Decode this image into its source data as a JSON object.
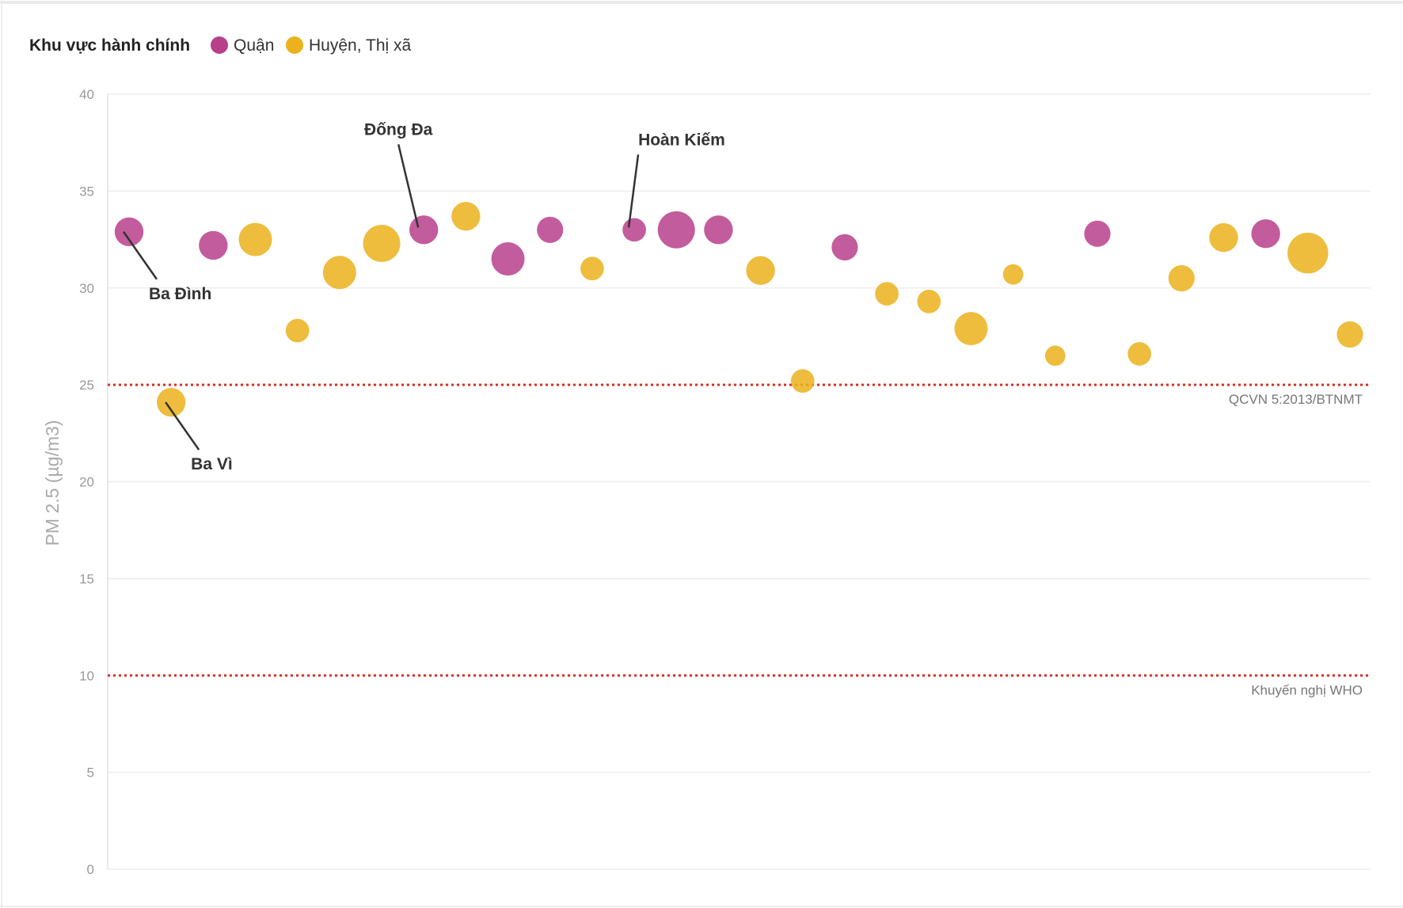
{
  "chart_data": {
    "type": "scatter",
    "legend": {
      "title": "Khu vực hành chính",
      "placement": "top-left",
      "items": [
        {
          "label": "Quận",
          "color": "#b8408b"
        },
        {
          "label": "Huyện, Thị xã",
          "color": "#ebb21c"
        }
      ]
    },
    "ylabel": "PM 2.5 (µg/m3)",
    "xlabel": "",
    "ylim": [
      0,
      40
    ],
    "yticks": [
      {
        "value": 0,
        "label": "0"
      },
      {
        "value": 5,
        "label": "5"
      },
      {
        "value": 10,
        "label": "10"
      },
      {
        "value": 15,
        "label": "15"
      },
      {
        "value": 20,
        "label": "20"
      },
      {
        "value": 25,
        "label": "25"
      },
      {
        "value": 30,
        "label": "30"
      },
      {
        "value": 35,
        "label": "35"
      },
      {
        "value": 40,
        "label": "40"
      }
    ],
    "grid": true,
    "reference_lines": [
      {
        "value": 25,
        "label": "QCVN 5:2013/BTNMT",
        "color": "#d9302c"
      },
      {
        "value": 10,
        "label": "Khuyến nghị WHO",
        "color": "#d9302c"
      }
    ],
    "points": [
      {
        "index": 1,
        "y": 32.9,
        "group": 0,
        "size": 3
      },
      {
        "index": 2,
        "y": 24.1,
        "group": 1,
        "size": 3
      },
      {
        "index": 3,
        "y": 32.2,
        "group": 0,
        "size": 3
      },
      {
        "index": 4,
        "y": 32.5,
        "group": 1,
        "size": 4
      },
      {
        "index": 5,
        "y": 27.8,
        "group": 1,
        "size": 2
      },
      {
        "index": 6,
        "y": 30.8,
        "group": 1,
        "size": 4
      },
      {
        "index": 7,
        "y": 32.3,
        "group": 1,
        "size": 5
      },
      {
        "index": 8,
        "y": 33.0,
        "group": 0,
        "size": 3
      },
      {
        "index": 9,
        "y": 33.7,
        "group": 1,
        "size": 3
      },
      {
        "index": 10,
        "y": 31.5,
        "group": 0,
        "size": 4
      },
      {
        "index": 11,
        "y": 33.0,
        "group": 0,
        "size": 2.5
      },
      {
        "index": 12,
        "y": 31.0,
        "group": 1,
        "size": 2
      },
      {
        "index": 13,
        "y": 33.0,
        "group": 0,
        "size": 2
      },
      {
        "index": 14,
        "y": 33.0,
        "group": 0,
        "size": 5
      },
      {
        "index": 15,
        "y": 33.0,
        "group": 0,
        "size": 3
      },
      {
        "index": 16,
        "y": 30.9,
        "group": 1,
        "size": 3
      },
      {
        "index": 17,
        "y": 25.2,
        "group": 1,
        "size": 2
      },
      {
        "index": 18,
        "y": 32.1,
        "group": 0,
        "size": 2.5
      },
      {
        "index": 19,
        "y": 29.7,
        "group": 1,
        "size": 2
      },
      {
        "index": 20,
        "y": 29.3,
        "group": 1,
        "size": 2
      },
      {
        "index": 21,
        "y": 27.9,
        "group": 1,
        "size": 4
      },
      {
        "index": 22,
        "y": 30.7,
        "group": 1,
        "size": 1.5
      },
      {
        "index": 23,
        "y": 26.5,
        "group": 1,
        "size": 1.5
      },
      {
        "index": 24,
        "y": 32.8,
        "group": 0,
        "size": 2.5
      },
      {
        "index": 25,
        "y": 26.6,
        "group": 1,
        "size": 2
      },
      {
        "index": 26,
        "y": 30.5,
        "group": 1,
        "size": 2.5
      },
      {
        "index": 27,
        "y": 32.6,
        "group": 1,
        "size": 3
      },
      {
        "index": 28,
        "y": 32.8,
        "group": 0,
        "size": 3
      },
      {
        "index": 29,
        "y": 31.8,
        "group": 1,
        "size": 6
      },
      {
        "index": 30,
        "y": 27.6,
        "group": 1,
        "size": 2.5
      }
    ],
    "annotations": [
      {
        "label": "Ba Đình",
        "point_index": 1,
        "position": "below-right"
      },
      {
        "label": "Ba Vì",
        "point_index": 2,
        "position": "below-right"
      },
      {
        "label": "Đống Đa",
        "point_index": 8,
        "position": "above-left"
      },
      {
        "label": "Hoàn Kiếm",
        "point_index": 13,
        "position": "above-right"
      }
    ]
  }
}
